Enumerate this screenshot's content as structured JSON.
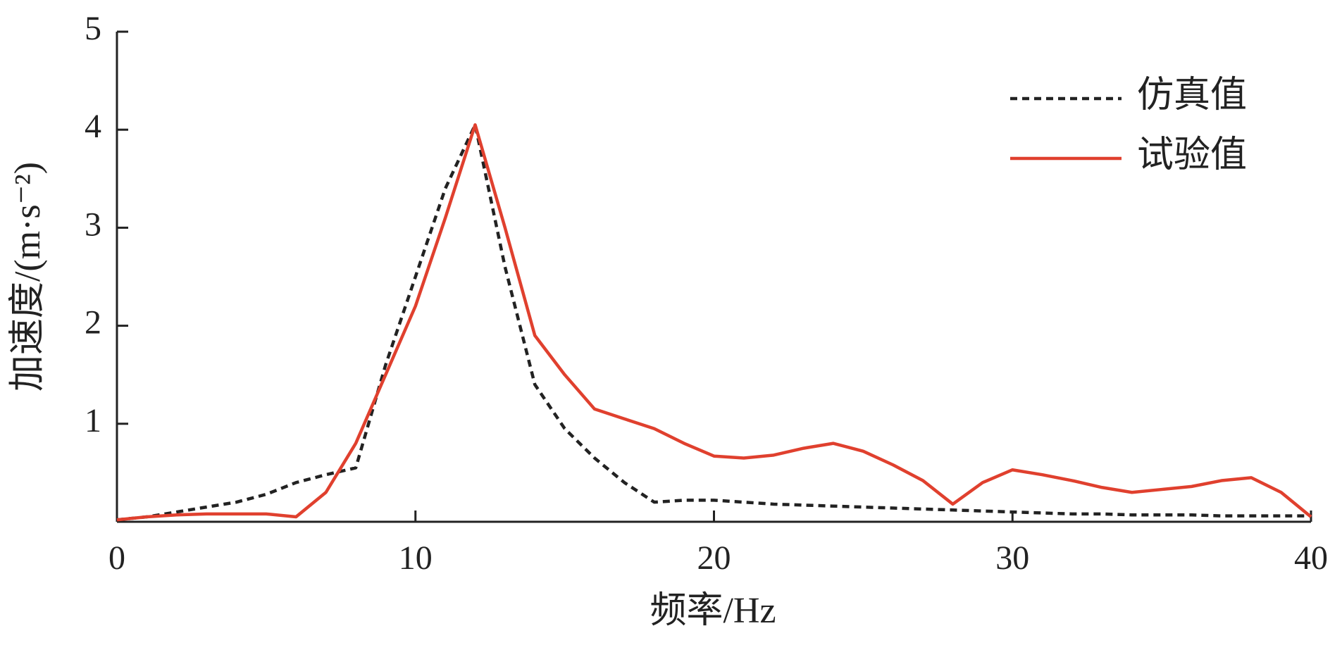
{
  "chart_data": {
    "type": "line",
    "x_label": "频率/Hz",
    "y_label": "加速度/(m·s⁻²)",
    "x": [
      0,
      1,
      2,
      3,
      4,
      5,
      6,
      7,
      8,
      9,
      10,
      11,
      12,
      13,
      14,
      15,
      16,
      17,
      18,
      19,
      20,
      21,
      22,
      23,
      24,
      25,
      26,
      27,
      28,
      29,
      30,
      31,
      32,
      33,
      34,
      35,
      36,
      37,
      38,
      39,
      40
    ],
    "series": [
      {
        "name": "仿真值",
        "color": "#222222",
        "dash": true,
        "values": [
          0.02,
          0.05,
          0.1,
          0.15,
          0.2,
          0.28,
          0.4,
          0.48,
          0.55,
          1.6,
          2.5,
          3.4,
          4.05,
          2.6,
          1.4,
          0.95,
          0.65,
          0.4,
          0.2,
          0.22,
          0.22,
          0.2,
          0.18,
          0.17,
          0.16,
          0.15,
          0.14,
          0.13,
          0.12,
          0.11,
          0.1,
          0.09,
          0.08,
          0.08,
          0.07,
          0.07,
          0.07,
          0.06,
          0.06,
          0.06,
          0.06
        ]
      },
      {
        "name": "试验值",
        "color": "#e0402e",
        "dash": false,
        "values": [
          0.02,
          0.05,
          0.07,
          0.08,
          0.08,
          0.08,
          0.05,
          0.3,
          0.8,
          1.5,
          2.2,
          3.1,
          4.05,
          3.0,
          1.9,
          1.5,
          1.15,
          1.05,
          0.95,
          0.8,
          0.67,
          0.65,
          0.68,
          0.75,
          0.8,
          0.72,
          0.58,
          0.42,
          0.18,
          0.4,
          0.53,
          0.48,
          0.42,
          0.35,
          0.3,
          0.33,
          0.36,
          0.42,
          0.45,
          0.3,
          0.05
        ]
      }
    ],
    "xlim": [
      0,
      40
    ],
    "xticks": [
      0,
      10,
      20,
      30,
      40
    ],
    "ylim": [
      0,
      5
    ],
    "yticks": [
      1,
      2,
      3,
      4,
      5
    ],
    "legend": "upper right"
  }
}
